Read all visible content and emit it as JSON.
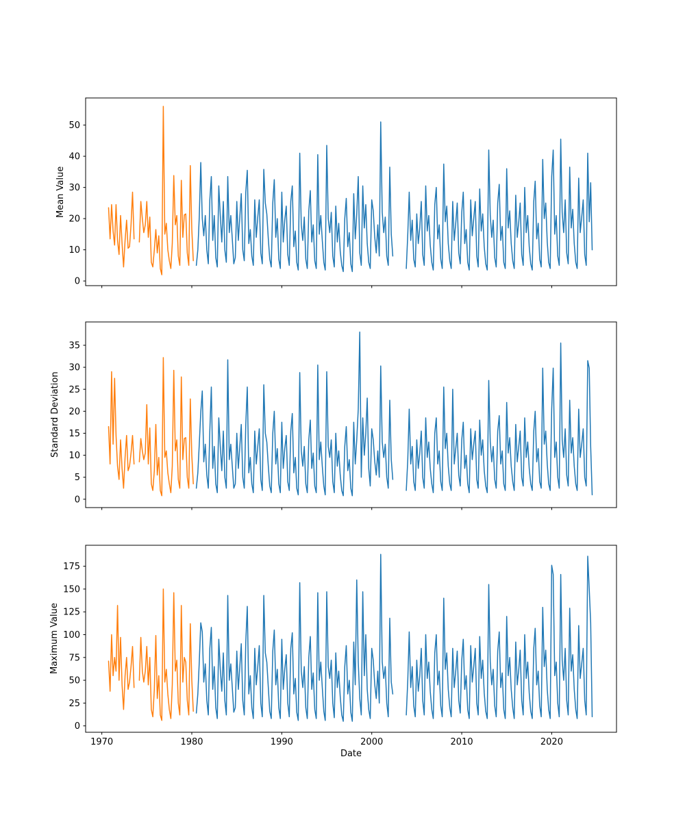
{
  "figure": {
    "background": "#ffffff"
  },
  "xaxis": {
    "label": "Date",
    "tick_values": [
      1970,
      1980,
      1990,
      2000,
      2010,
      2020
    ],
    "tick_labels": [
      "1970",
      "1980",
      "1990",
      "2000",
      "2010",
      "2020"
    ],
    "xlim": [
      1968.2,
      2027.2
    ]
  },
  "colors": {
    "early": "#ff7f0e",
    "late": "#1f77b4"
  },
  "chart_data": [
    {
      "type": "line",
      "title": "",
      "ylabel": "Mean Value",
      "xlabel": "",
      "yticks": [
        0,
        10,
        20,
        30,
        40,
        50
      ],
      "ylim": [
        -1.5,
        58.7
      ],
      "xlim": [
        1968.2,
        2027.2
      ],
      "grid": false,
      "legend": "none",
      "segments": [
        {
          "name": "early-orange-1",
          "color": "#ff7f0e",
          "x0": 1970.75,
          "dx": 0.166667,
          "values": [
            23.5,
            13.5,
            24.5,
            16,
            11.5,
            24.5,
            13,
            8.5,
            21,
            12,
            4.5,
            13,
            19.5,
            10.5,
            11,
            18,
            28.5,
            13.5
          ]
        },
        {
          "name": "early-orange-2",
          "color": "#ff7f0e",
          "x0": 1974.166667,
          "dx": 0.166667,
          "values": [
            12.5,
            25.5,
            20,
            15.5,
            18,
            25.5,
            14,
            20.5,
            6,
            4.5,
            10,
            16.5,
            9,
            14.5,
            4,
            2,
            56,
            15,
            18.5,
            10,
            6.5,
            4,
            12,
            33.8,
            18,
            21,
            8,
            5,
            32.3,
            14,
            21.2,
            21.5,
            9,
            5,
            37,
            16.5,
            6.5
          ]
        },
        {
          "name": "late-blue-1",
          "color": "#1f77b4",
          "x0": 1980.5,
          "dx": 0.166667,
          "values": [
            5,
            10,
            20.5,
            38,
            20,
            14.5,
            21,
            10,
            5.5,
            26,
            33.5,
            13,
            21,
            7.5,
            4.5,
            30.5,
            21,
            12.5,
            25.5,
            10,
            6,
            33.5,
            15.5,
            21,
            13.5,
            5.5,
            7.5,
            25.5,
            13,
            20.5,
            28,
            10,
            6.5,
            28.5,
            35.5,
            12,
            16.5,
            8,
            5,
            26,
            14,
            20.5,
            26,
            9,
            5.5,
            35.8,
            25,
            21.5,
            13.5,
            7,
            4.5,
            25,
            32.5,
            14,
            20,
            7,
            4,
            28.5,
            12.5,
            19.5,
            24,
            8.5,
            5,
            25.5,
            30.5,
            11,
            16,
            6,
            3.5,
            41,
            18,
            13,
            20.5,
            7,
            4,
            22.5,
            29,
            12.5,
            18,
            6.5,
            4,
            40.5,
            15,
            21,
            13,
            6,
            3.5,
            43.5,
            20,
            15.5,
            22,
            8,
            4.5,
            24,
            12.5,
            18.5,
            9.5,
            5,
            3,
            20,
            26.5,
            11,
            15.5,
            5.5,
            3,
            28,
            13.5,
            21.5,
            33.5,
            9,
            5,
            30.5,
            17,
            24.5,
            12,
            6,
            4,
            26,
            22.5,
            14,
            9,
            18,
            8,
            51,
            22,
            15.5,
            20.5,
            8,
            5,
            36.5,
            15,
            8
          ]
        },
        {
          "name": "late-blue-2",
          "color": "#1f77b4",
          "x0": 2003.833333,
          "dx": 0.166667,
          "values": [
            4,
            15,
            28.5,
            13,
            19.5,
            7,
            4.5,
            21.5,
            12,
            17,
            25.5,
            8.5,
            5,
            30.5,
            16,
            21,
            11.5,
            6,
            3.5,
            24.5,
            30,
            13.5,
            18,
            7,
            4,
            37.5,
            19,
            24,
            12,
            6.5,
            4,
            25.5,
            13,
            18.5,
            25,
            9,
            5.5,
            22,
            28.5,
            12,
            16.5,
            6,
            3.5,
            26,
            14.5,
            20,
            25.5,
            8,
            4.5,
            29.5,
            16,
            21.5,
            11,
            5.5,
            3.5,
            42,
            21,
            14,
            19.5,
            7.5,
            4.5,
            25,
            31,
            13,
            17.5,
            6,
            4,
            36,
            17,
            22.5,
            12,
            6.5,
            4,
            27.5,
            14,
            19,
            25,
            8.5,
            5,
            30,
            15.5,
            21,
            11,
            5.5,
            3.5,
            25.5,
            32,
            13.5,
            18.5,
            7,
            4.5,
            39,
            20,
            25,
            12.5,
            6,
            4,
            33.5,
            42,
            15,
            21,
            8,
            5,
            45.5,
            22,
            15.5,
            26,
            9,
            5.5,
            36.5,
            17,
            23,
            12,
            6,
            4,
            33,
            15.5,
            20.5,
            26,
            8.5,
            5,
            41,
            19,
            31.5,
            10
          ]
        }
      ]
    },
    {
      "type": "line",
      "title": "",
      "ylabel": "Standard Deviation",
      "xlabel": "",
      "yticks": [
        0,
        5,
        10,
        15,
        20,
        25,
        30,
        35
      ],
      "ylim": [
        -1.9,
        40.3
      ],
      "xlim": [
        1968.2,
        2027.2
      ],
      "grid": false,
      "legend": "none",
      "segments": [
        {
          "name": "early-orange-1",
          "color": "#ff7f0e",
          "x0": 1970.75,
          "dx": 0.166667,
          "values": [
            16.5,
            8,
            29,
            12.5,
            27.5,
            14.5,
            7.5,
            4.5,
            13.5,
            7,
            2.5,
            9.5,
            14.5,
            6.5,
            7.5,
            10.5,
            14.5,
            8
          ]
        },
        {
          "name": "early-orange-2",
          "color": "#ff7f0e",
          "x0": 1974.166667,
          "dx": 0.166667,
          "values": [
            8.5,
            13.8,
            11,
            9,
            10.5,
            21.5,
            8,
            16.2,
            3.5,
            2,
            6.5,
            17,
            5.5,
            9.5,
            2,
            0.8,
            32.2,
            9.5,
            11,
            6,
            3.5,
            1.5,
            7.5,
            29.3,
            11,
            13.5,
            4.5,
            2.5,
            27.8,
            9,
            13.8,
            14,
            5,
            2.5,
            22.8,
            10,
            3.5
          ]
        },
        {
          "name": "late-blue-1",
          "color": "#1f77b4",
          "x0": 1980.5,
          "dx": 0.166667,
          "values": [
            2.5,
            6,
            12.5,
            19.8,
            24.6,
            8.5,
            12.5,
            5.5,
            2.5,
            15.5,
            25.5,
            7,
            12,
            3.5,
            1.5,
            18.5,
            12,
            6.5,
            15.5,
            5,
            2.5,
            31.7,
            9,
            12.5,
            7.5,
            2.5,
            3.5,
            15,
            7,
            12,
            17,
            5,
            2.5,
            17,
            25.5,
            6,
            9.5,
            3.5,
            1.5,
            15.5,
            8,
            12,
            16,
            4.5,
            2,
            26,
            15,
            13,
            7.5,
            3,
            1.5,
            15,
            20,
            8,
            11.5,
            3.5,
            1.5,
            17.5,
            7,
            11.5,
            14.5,
            4,
            2,
            15.5,
            19.5,
            6,
            9.5,
            2.5,
            1,
            28.8,
            11,
            7.5,
            12,
            3.5,
            1.5,
            13.5,
            18,
            7,
            10.5,
            3,
            1.5,
            30.5,
            9,
            13,
            7.5,
            3,
            1,
            29,
            12,
            9.5,
            13.5,
            4,
            1.5,
            15,
            7.5,
            11,
            5.5,
            2,
            0.8,
            12,
            16.5,
            6.5,
            9,
            2.5,
            0.8,
            17.5,
            8,
            13.5,
            20.5,
            38,
            5,
            18.5,
            10,
            15,
            23,
            7,
            3,
            16,
            13.5,
            8.5,
            5.5,
            11,
            5,
            30.3,
            13,
            9.5,
            12.5,
            5,
            2.5,
            22.5,
            9,
            4.5
          ]
        },
        {
          "name": "late-blue-2",
          "color": "#1f77b4",
          "x0": 2003.833333,
          "dx": 0.166667,
          "values": [
            2,
            9,
            20.5,
            8,
            12,
            4,
            2,
            13.5,
            7,
            10.5,
            15.5,
            5,
            2.5,
            18.5,
            9.5,
            13,
            7,
            3.5,
            1.5,
            15,
            18.5,
            8,
            11,
            4,
            2,
            25.5,
            11.5,
            15,
            7.5,
            3.5,
            2,
            25,
            8,
            11.5,
            15,
            5.5,
            3,
            13.5,
            17.5,
            7,
            10,
            3.5,
            1.5,
            16,
            9,
            12.5,
            15.5,
            4.5,
            2.5,
            18,
            10,
            13.5,
            6.5,
            3,
            1.5,
            27,
            13,
            8.5,
            12,
            4.5,
            2.5,
            15.5,
            19,
            8,
            11,
            3.5,
            2,
            22,
            10.5,
            14,
            7.5,
            4,
            2,
            17,
            8.5,
            12,
            15.5,
            5,
            3,
            18.5,
            9.5,
            13,
            7,
            3.5,
            2,
            15.5,
            20,
            8.5,
            11.5,
            4,
            2.5,
            29.8,
            12.5,
            15.5,
            8,
            3.5,
            2,
            20.5,
            29.8,
            9.5,
            13,
            5,
            2.5,
            35.5,
            13.5,
            9.5,
            16,
            5.5,
            3,
            22.5,
            10.5,
            14,
            7.5,
            3.5,
            2,
            20.5,
            9.5,
            12.5,
            16,
            5,
            3,
            31.5,
            29.8,
            12,
            1
          ]
        }
      ]
    },
    {
      "type": "line",
      "title": "",
      "ylabel": "Maximum Value",
      "xlabel": "Date",
      "yticks": [
        0,
        25,
        50,
        75,
        100,
        125,
        150,
        175
      ],
      "ylim": [
        -7,
        198
      ],
      "xlim": [
        1968.2,
        2027.2
      ],
      "grid": false,
      "legend": "none",
      "segments": [
        {
          "name": "early-orange-1",
          "color": "#ff7f0e",
          "x0": 1970.75,
          "dx": 0.166667,
          "values": [
            71,
            38,
            100,
            55,
            75,
            60,
            132,
            50,
            97,
            45,
            18,
            55,
            75,
            40,
            48,
            65,
            87,
            42
          ]
        },
        {
          "name": "early-orange-2",
          "color": "#ff7f0e",
          "x0": 1974.166667,
          "dx": 0.166667,
          "values": [
            50,
            97,
            60,
            48,
            60,
            87,
            45,
            75,
            18,
            10,
            40,
            99,
            30,
            55,
            12,
            6,
            150,
            48,
            62,
            35,
            18,
            8,
            45,
            146,
            60,
            72,
            25,
            12,
            132,
            48,
            75,
            70,
            28,
            12,
            112,
            50,
            16
          ]
        },
        {
          "name": "late-blue-1",
          "color": "#1f77b4",
          "x0": 1980.5,
          "dx": 0.166667,
          "values": [
            14,
            35,
            70,
            113,
            103,
            48,
            68,
            28,
            12,
            85,
            108,
            40,
            65,
            20,
            8,
            95,
            62,
            38,
            80,
            28,
            12,
            143,
            50,
            68,
            42,
            15,
            20,
            82,
            40,
            65,
            90,
            28,
            12,
            92,
            131,
            35,
            55,
            20,
            8,
            85,
            45,
            65,
            88,
            25,
            10,
            143,
            80,
            70,
            42,
            16,
            8,
            82,
            105,
            45,
            62,
            20,
            8,
            95,
            40,
            62,
            78,
            25,
            10,
            85,
            102,
            35,
            52,
            15,
            6,
            157,
            60,
            42,
            65,
            20,
            8,
            75,
            98,
            40,
            58,
            18,
            8,
            146,
            50,
            70,
            42,
            16,
            6,
            147,
            65,
            52,
            72,
            25,
            9,
            80,
            42,
            60,
            32,
            12,
            5,
            65,
            88,
            35,
            50,
            15,
            5,
            92,
            45,
            160,
            70,
            30,
            12,
            147,
            55,
            100,
            40,
            18,
            8,
            85,
            72,
            45,
            30,
            60,
            25,
            188,
            70,
            52,
            65,
            25,
            10,
            118,
            48,
            35
          ]
        },
        {
          "name": "late-blue-2",
          "color": "#1f77b4",
          "x0": 2003.833333,
          "dx": 0.166667,
          "values": [
            12,
            50,
            103,
            42,
            65,
            22,
            10,
            72,
            38,
            55,
            85,
            28,
            12,
            100,
            52,
            70,
            38,
            18,
            8,
            80,
            100,
            45,
            60,
            22,
            10,
            140,
            62,
            80,
            40,
            20,
            10,
            85,
            42,
            60,
            82,
            28,
            14,
            72,
            95,
            40,
            55,
            18,
            8,
            88,
            48,
            65,
            85,
            25,
            12,
            98,
            52,
            72,
            36,
            16,
            8,
            155,
            70,
            45,
            62,
            22,
            10,
            82,
            103,
            42,
            58,
            18,
            8,
            120,
            55,
            75,
            40,
            20,
            8,
            92,
            45,
            62,
            83,
            28,
            12,
            100,
            52,
            70,
            36,
            16,
            8,
            85,
            107,
            45,
            60,
            22,
            10,
            130,
            65,
            83,
            40,
            18,
            8,
            176,
            166,
            55,
            70,
            25,
            10,
            166,
            72,
            50,
            85,
            28,
            12,
            129,
            60,
            78,
            40,
            18,
            8,
            110,
            52,
            68,
            85,
            28,
            12,
            186,
            150,
            113,
            10
          ]
        }
      ]
    }
  ]
}
